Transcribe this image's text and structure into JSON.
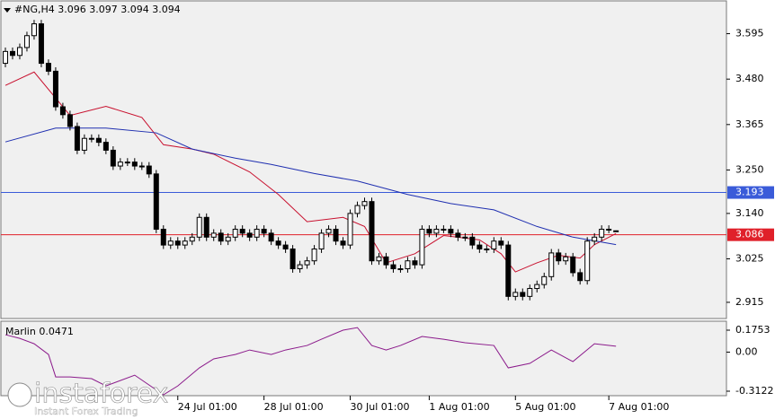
{
  "chart_data": [
    {
      "type": "candlestick",
      "title": "#NG,H4 3.096 3.097 3.094 3.094",
      "xlim": [
        -0.625,
        100.375
      ],
      "xticks": [
        {
          "value": 24,
          "label": "24 Jul 01:00"
        },
        {
          "value": 36,
          "label": "28 Jul 01:00"
        },
        {
          "value": 48,
          "label": "30 Jul 01:00"
        },
        {
          "value": 59,
          "label": "1 Aug 01:00"
        },
        {
          "value": 71,
          "label": "5 Aug 01:00"
        },
        {
          "value": 84,
          "label": "7 Aug 01:00"
        }
      ],
      "ylim": [
        2.874,
        3.678
      ],
      "yticks": [
        2.915,
        3.025,
        {
          "value": 3.14,
          "label": "3.140"
        },
        {
          "value": 3.25,
          "label": "3.250"
        },
        3.365,
        {
          "value": 3.48,
          "label": "3.480"
        },
        3.595
      ],
      "open": [
        3.52,
        3.55,
        3.54,
        3.56,
        3.59,
        3.62,
        3.52,
        3.5,
        3.41,
        3.39,
        3.36,
        3.3,
        3.33,
        3.33,
        3.32,
        3.3,
        3.26,
        3.27,
        3.27,
        3.26,
        3.26,
        3.24,
        3.1,
        3.06,
        3.07,
        3.06,
        3.07,
        3.08,
        3.13,
        3.08,
        3.09,
        3.07,
        3.08,
        3.1,
        3.09,
        3.08,
        3.1,
        3.09,
        3.07,
        3.06,
        3.05,
        3.0,
        3.01,
        3.02,
        3.05,
        3.09,
        3.1,
        3.07,
        3.06,
        3.14,
        3.16,
        3.17,
        3.02,
        3.03,
        3.01,
        3.0,
        3.0,
        3.02,
        3.01,
        3.1,
        3.09,
        3.1,
        3.1,
        3.09,
        3.08,
        3.08,
        3.06,
        3.05,
        3.05,
        3.07,
        3.06,
        2.93,
        2.94,
        2.93,
        2.95,
        2.96,
        2.98,
        3.04,
        3.02,
        3.03,
        2.99,
        2.97,
        3.07,
        3.08,
        3.1,
        3.096
      ],
      "high": [
        3.56,
        3.56,
        3.57,
        3.6,
        3.63,
        3.63,
        3.53,
        3.51,
        3.42,
        3.4,
        3.37,
        3.34,
        3.34,
        3.34,
        3.33,
        3.31,
        3.28,
        3.28,
        3.28,
        3.27,
        3.27,
        3.25,
        3.11,
        3.08,
        3.08,
        3.08,
        3.09,
        3.14,
        3.14,
        3.1,
        3.1,
        3.09,
        3.11,
        3.11,
        3.1,
        3.11,
        3.11,
        3.1,
        3.08,
        3.07,
        3.06,
        3.02,
        3.03,
        3.06,
        3.1,
        3.11,
        3.11,
        3.08,
        3.15,
        3.17,
        3.18,
        3.18,
        3.04,
        3.04,
        3.02,
        3.01,
        3.03,
        3.03,
        3.11,
        3.11,
        3.11,
        3.11,
        3.11,
        3.1,
        3.09,
        3.09,
        3.07,
        3.06,
        3.08,
        3.08,
        3.07,
        2.95,
        2.95,
        2.96,
        2.97,
        2.99,
        3.05,
        3.05,
        3.04,
        3.04,
        3.0,
        3.08,
        3.09,
        3.11,
        3.11,
        3.097
      ],
      "low": [
        3.51,
        3.53,
        3.53,
        3.55,
        3.58,
        3.51,
        3.49,
        3.4,
        3.38,
        3.35,
        3.29,
        3.29,
        3.32,
        3.31,
        3.29,
        3.25,
        3.25,
        3.26,
        3.25,
        3.25,
        3.23,
        3.09,
        3.05,
        3.05,
        3.05,
        3.05,
        3.06,
        3.07,
        3.07,
        3.07,
        3.06,
        3.06,
        3.07,
        3.08,
        3.07,
        3.07,
        3.08,
        3.06,
        3.05,
        3.04,
        2.99,
        2.99,
        3.0,
        3.01,
        3.04,
        3.08,
        3.06,
        3.05,
        3.05,
        3.13,
        3.15,
        3.01,
        3.01,
        3.0,
        2.99,
        2.99,
        2.99,
        3.0,
        3.0,
        3.08,
        3.08,
        3.09,
        3.08,
        3.07,
        3.07,
        3.05,
        3.04,
        3.04,
        3.04,
        3.05,
        2.92,
        2.92,
        2.92,
        2.92,
        2.94,
        2.95,
        2.97,
        3.01,
        3.01,
        2.98,
        2.96,
        2.96,
        3.06,
        3.07,
        3.09,
        3.094
      ],
      "close": [
        3.55,
        3.54,
        3.56,
        3.59,
        3.62,
        3.52,
        3.5,
        3.41,
        3.39,
        3.36,
        3.3,
        3.33,
        3.33,
        3.32,
        3.3,
        3.26,
        3.27,
        3.27,
        3.26,
        3.26,
        3.24,
        3.1,
        3.06,
        3.07,
        3.06,
        3.07,
        3.08,
        3.13,
        3.08,
        3.09,
        3.07,
        3.08,
        3.1,
        3.09,
        3.08,
        3.1,
        3.09,
        3.07,
        3.06,
        3.05,
        3.0,
        3.01,
        3.02,
        3.05,
        3.09,
        3.1,
        3.07,
        3.06,
        3.14,
        3.16,
        3.17,
        3.02,
        3.03,
        3.01,
        3.0,
        3.0,
        3.02,
        3.01,
        3.1,
        3.09,
        3.1,
        3.1,
        3.09,
        3.08,
        3.08,
        3.06,
        3.05,
        3.05,
        3.07,
        3.06,
        2.93,
        2.94,
        2.93,
        2.95,
        2.96,
        2.98,
        3.04,
        3.02,
        3.03,
        2.99,
        2.97,
        3.07,
        3.08,
        3.1,
        3.1,
        3.094
      ],
      "series": [
        {
          "color": "#c8102e",
          "x": [
            0,
            4,
            9,
            14,
            19,
            22,
            26,
            29,
            34,
            38,
            42,
            47,
            50,
            53,
            57,
            61,
            66,
            69,
            71,
            74,
            77,
            80,
            82,
            85
          ],
          "values": [
            3.464,
            3.498,
            3.388,
            3.411,
            3.383,
            3.314,
            3.303,
            3.29,
            3.245,
            3.188,
            3.119,
            3.13,
            3.107,
            3.015,
            3.038,
            3.084,
            3.073,
            3.038,
            2.992,
            3.015,
            3.034,
            3.027,
            3.061,
            3.089
          ]
        },
        {
          "color": "#1f2fb0",
          "x": [
            0,
            7,
            14,
            21,
            26,
            32,
            37,
            43,
            49,
            56,
            62,
            68,
            74,
            79,
            85
          ],
          "values": [
            3.321,
            3.356,
            3.356,
            3.344,
            3.303,
            3.28,
            3.264,
            3.241,
            3.222,
            3.188,
            3.165,
            3.149,
            3.107,
            3.08,
            3.061
          ]
        }
      ],
      "levels": [
        {
          "value": 3.193,
          "color": "#3a5bd9"
        },
        {
          "value": 3.086,
          "color": "#e0202a"
        }
      ]
    },
    {
      "type": "line",
      "title": "Marlin 0.0471",
      "xlim": [
        -0.625,
        100.375
      ],
      "ylim": [
        -0.348,
        0.247
      ],
      "yticks": [
        -0.3122,
        {
          "value": 0,
          "label": "0.00"
        },
        0.1753
      ],
      "series": [
        {
          "color": "#8b1a8b",
          "x": [
            0,
            2,
            4,
            6,
            7,
            9,
            12,
            14,
            18,
            22,
            24,
            27,
            29,
            32,
            34,
            37,
            39,
            42,
            44,
            47,
            49,
            51,
            53,
            55,
            58,
            61,
            64,
            68,
            70,
            73,
            76,
            79,
            82,
            85
          ],
          "values": [
            0.139,
            0.11,
            0.067,
            -0.019,
            -0.198,
            -0.198,
            -0.212,
            -0.27,
            -0.184,
            -0.341,
            -0.27,
            -0.126,
            -0.054,
            -0.019,
            0.017,
            -0.019,
            0.017,
            0.053,
            0.103,
            0.175,
            0.196,
            0.053,
            0.017,
            0.053,
            0.125,
            0.103,
            0.075,
            0.053,
            -0.126,
            -0.09,
            0.017,
            -0.076,
            0.067,
            0.0471
          ]
        }
      ]
    }
  ],
  "watermark": {
    "brand": "instaforex",
    "tagline": "Instant Forex Trading"
  }
}
